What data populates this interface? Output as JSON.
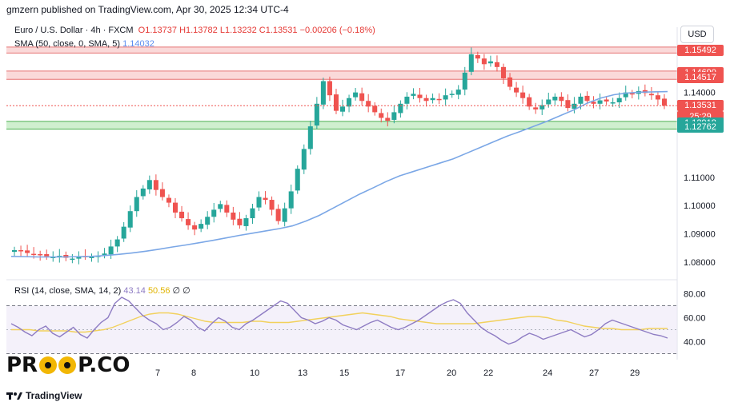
{
  "header": {
    "publish_line": "gmzern published on TradingView.com, Apr 30, 2025 12:34 UTC-4"
  },
  "legend": {
    "symbol": "Euro / U.S. Dollar · 4h · FXCM",
    "o": "O1.13737",
    "h": "H1.13782",
    "l": "L1.13232",
    "c": "C1.13531",
    "change": "−0.00206 (−0.18%)",
    "sma_label": "SMA (50, close, 0, SMA, 5)",
    "sma_value": "1.14032",
    "rsi_label": "RSI (14, close, SMA, 14, 2)",
    "rsi_value": "43.14",
    "rsi_ma_value": "50.56",
    "rsi_extra": "∅ ∅"
  },
  "currency_button": "USD",
  "footer": {
    "brand": "TradingView"
  },
  "watermark": {
    "left": "PR",
    "right": "P.CO"
  },
  "colors": {
    "up": "#26a69a",
    "down": "#ef5350",
    "sma": "#7ba7e6",
    "rsi": "#8e7cc3",
    "rsi_ma": "#f2d15c",
    "resistance_zone": "#f6b9b9",
    "support_zone": "#a8e2a8"
  },
  "chart_data": [
    {
      "type": "candlestick",
      "title": "Euro / U.S. Dollar · 4h · FXCM",
      "x_ticks": [
        "7",
        "8",
        "10",
        "13",
        "15",
        "17",
        "20",
        "22",
        "24",
        "27",
        "29"
      ],
      "y_ticks": [
        "1.08000",
        "1.09000",
        "1.10000",
        "1.11000",
        "1.14000"
      ],
      "ylim": [
        1.076,
        1.158
      ],
      "price_labels": [
        {
          "value": "1.15492",
          "color": "#ef5350"
        },
        {
          "value": "1.14690",
          "color": "#ef5350"
        },
        {
          "value": "1.14517",
          "color": "#ef5350"
        },
        {
          "value": "1.13531",
          "color": "#ef5350"
        },
        {
          "value": "25:29",
          "color": "#ef5350"
        },
        {
          "value": "1.12918",
          "color": "#26a69a"
        },
        {
          "value": "1.12762",
          "color": "#26a69a"
        }
      ],
      "zones": [
        {
          "kind": "resistance",
          "from": 1.1545,
          "to": 1.1555
        },
        {
          "kind": "resistance",
          "from": 1.1452,
          "to": 1.147
        },
        {
          "kind": "support",
          "from": 1.1276,
          "to": 1.1292
        }
      ],
      "close": [
        1.0842,
        1.0838,
        1.0832,
        1.0828,
        1.0825,
        1.082,
        1.0818,
        1.0822,
        1.0815,
        1.0812,
        1.0818,
        1.082,
        1.0818,
        1.0822,
        1.083,
        1.0855,
        1.088,
        1.0925,
        1.098,
        1.103,
        1.106,
        1.109,
        1.1055,
        1.103,
        1.101,
        1.0975,
        1.0955,
        1.093,
        1.0915,
        1.0935,
        1.096,
        1.0985,
        1.1005,
        1.0975,
        1.095,
        1.093,
        1.0955,
        1.099,
        1.103,
        1.102,
        1.0985,
        1.0945,
        1.099,
        1.105,
        1.113,
        1.12,
        1.128,
        1.136,
        1.144,
        1.139,
        1.1335,
        1.135,
        1.138,
        1.14,
        1.137,
        1.135,
        1.133,
        1.131,
        1.13,
        1.133,
        1.136,
        1.1385,
        1.1395,
        1.138,
        1.137,
        1.138,
        1.1375,
        1.139,
        1.1395,
        1.141,
        1.147,
        1.1535,
        1.152,
        1.15,
        1.151,
        1.149,
        1.145,
        1.142,
        1.14,
        1.138,
        1.135,
        1.134,
        1.1355,
        1.1375,
        1.1385,
        1.137,
        1.1345,
        1.136,
        1.1385,
        1.137,
        1.136,
        1.1372,
        1.1368,
        1.1365,
        1.138,
        1.14,
        1.1395,
        1.1405,
        1.1398,
        1.139,
        1.1375,
        1.1353
      ],
      "sma": [
        1.082,
        1.0819,
        1.0818,
        1.0818,
        1.0818,
        1.0819,
        1.082,
        1.0823,
        1.0827,
        1.0832,
        1.0838,
        1.0845,
        1.0853,
        1.086,
        1.0868,
        1.0876,
        1.0885,
        1.0894,
        1.0902,
        1.091,
        1.0918,
        1.0928,
        1.0945,
        1.0965,
        1.099,
        1.1015,
        1.104,
        1.1062,
        1.1085,
        1.1105,
        1.112,
        1.1135,
        1.115,
        1.1165,
        1.1185,
        1.1205,
        1.1225,
        1.1245,
        1.1262,
        1.128,
        1.1298,
        1.1318,
        1.1338,
        1.1362,
        1.138,
        1.1392,
        1.1398,
        1.1401,
        1.1402,
        1.1403
      ],
      "series": [
        {
          "name": "SMA (50, close, 0, SMA, 5)",
          "last": 1.14032
        }
      ]
    },
    {
      "type": "line",
      "title": "RSI (14, close, SMA, 14, 2)",
      "y_ticks": [
        "40.00",
        "60.00",
        "80.00"
      ],
      "ylim": [
        25,
        85
      ],
      "bands": [
        30,
        70
      ],
      "series": [
        {
          "name": "RSI",
          "last": 43.14,
          "values": [
            55,
            52,
            48,
            45,
            50,
            53,
            47,
            44,
            48,
            52,
            46,
            43,
            50,
            56,
            60,
            72,
            77,
            74,
            68,
            62,
            58,
            55,
            50,
            52,
            56,
            61,
            58,
            52,
            49,
            55,
            60,
            57,
            52,
            50,
            55,
            58,
            62,
            66,
            70,
            74,
            72,
            66,
            60,
            58,
            55,
            57,
            60,
            58,
            54,
            52,
            50,
            53,
            56,
            58,
            55,
            52,
            50,
            52,
            55,
            58,
            62,
            66,
            70,
            73,
            75,
            72,
            64,
            58,
            52,
            48,
            45,
            41,
            38,
            40,
            44,
            47,
            45,
            42,
            44,
            46,
            48,
            50,
            47,
            44,
            46,
            50,
            55,
            58,
            56,
            54,
            52,
            50,
            48,
            46,
            45,
            43
          ]
        },
        {
          "name": "RSI MA",
          "last": 50.56,
          "values": [
            50,
            50,
            50,
            49,
            49,
            49,
            49,
            48,
            48,
            49,
            50,
            52,
            55,
            58,
            61,
            63,
            64,
            64,
            63,
            61,
            59,
            57,
            56,
            56,
            56,
            56,
            57,
            57,
            56,
            56,
            56,
            57,
            58,
            59,
            60,
            61,
            62,
            63,
            64,
            63,
            62,
            61,
            59,
            58,
            57,
            56,
            55,
            55,
            55,
            55,
            55,
            56,
            57,
            58,
            59,
            60,
            61,
            61,
            60,
            58,
            57,
            55,
            53,
            52,
            51,
            51,
            50,
            50,
            50,
            51,
            51,
            51
          ]
        }
      ]
    }
  ]
}
